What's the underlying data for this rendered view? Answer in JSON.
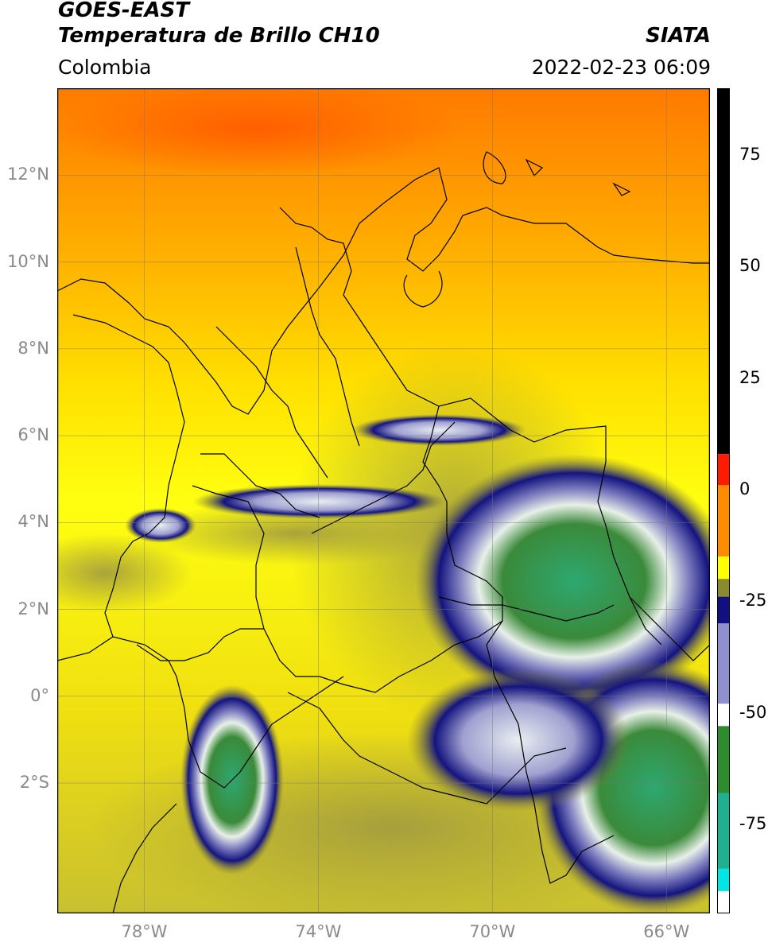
{
  "header": {
    "satellite": "GOES-EAST",
    "product": "Temperatura de Brillo CH10",
    "region": "Colombia",
    "agency": "SIATA",
    "datetime": "2022-02-23 06:09"
  },
  "map": {
    "lon_range": [
      -80,
      -65
    ],
    "lat_range": [
      -5,
      14
    ],
    "lat_ticks": [
      {
        "value": 12,
        "label": "12°N"
      },
      {
        "value": 10,
        "label": "10°N"
      },
      {
        "value": 8,
        "label": "8°N"
      },
      {
        "value": 6,
        "label": "6°N"
      },
      {
        "value": 4,
        "label": "4°N"
      },
      {
        "value": 2,
        "label": "2°N"
      },
      {
        "value": 0,
        "label": "0°"
      },
      {
        "value": -2,
        "label": "2°S"
      }
    ],
    "lon_ticks": [
      {
        "value": -78,
        "label": "78°W"
      },
      {
        "value": -74,
        "label": "74°W"
      },
      {
        "value": -70,
        "label": "70°W"
      },
      {
        "value": -66,
        "label": "66°W"
      }
    ]
  },
  "colorbar": {
    "range": [
      -95,
      90
    ],
    "ticks": [
      {
        "value": 75,
        "label": "75"
      },
      {
        "value": 50,
        "label": "50"
      },
      {
        "value": 25,
        "label": "25"
      },
      {
        "value": 0,
        "label": "0"
      },
      {
        "value": -25,
        "label": "-25"
      },
      {
        "value": -50,
        "label": "-50"
      },
      {
        "value": -75,
        "label": "-75"
      }
    ],
    "colors": {
      "black": "#000000",
      "red": "#ff1a00",
      "orange": "#ff8c00",
      "yellow": "#ffff00",
      "olive": "#8a8a30",
      "navy": "#101080",
      "white": "#ffffff",
      "green": "#2e8b2e",
      "teal": "#20b090",
      "cyan": "#00e5e5"
    }
  }
}
